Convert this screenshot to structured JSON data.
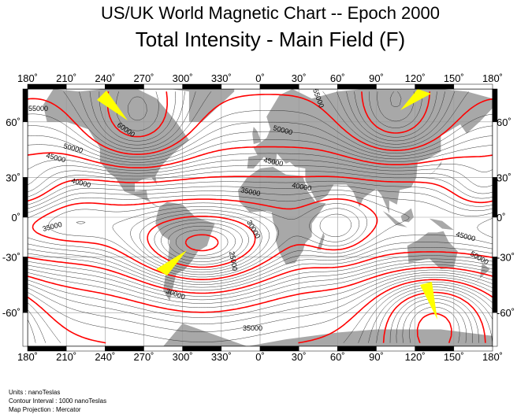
{
  "title": "US/UK World Magnetic Chart  --  Epoch 2000",
  "subtitle": "Total Intensity - Main Field (F)",
  "longitude_labels": [
    "180˚",
    "210˚",
    "240˚",
    "270˚",
    "300˚",
    "330˚",
    "0˚",
    "30˚",
    "60˚",
    "90˚",
    "120˚",
    "150˚",
    "180˚"
  ],
  "latitude_labels": [
    "60˚",
    "30˚",
    "0˚",
    "-30˚",
    "-60˚"
  ],
  "contour_labels": [
    "55000",
    "60000",
    "50000",
    "45000",
    "40000",
    "35000",
    "35000",
    "30000",
    "25000",
    "30000",
    "35000",
    "55000",
    "50000",
    "45000",
    "40000",
    "45000",
    "50000"
  ],
  "notes": {
    "units": "Units : nanoTeslas",
    "interval": "Contour Interval : 1000 nanoTeslas",
    "projection": "Map Projection : Mercator"
  },
  "map": {
    "projection": "Mercator",
    "contour_interval_nT": 1000,
    "major_contour_interval_nT": 5000,
    "colors": {
      "major_contour": "#ff0000",
      "minor_contour": "#000000",
      "land": "#a8a8a8",
      "pole_marker": "#ffff00"
    }
  }
}
